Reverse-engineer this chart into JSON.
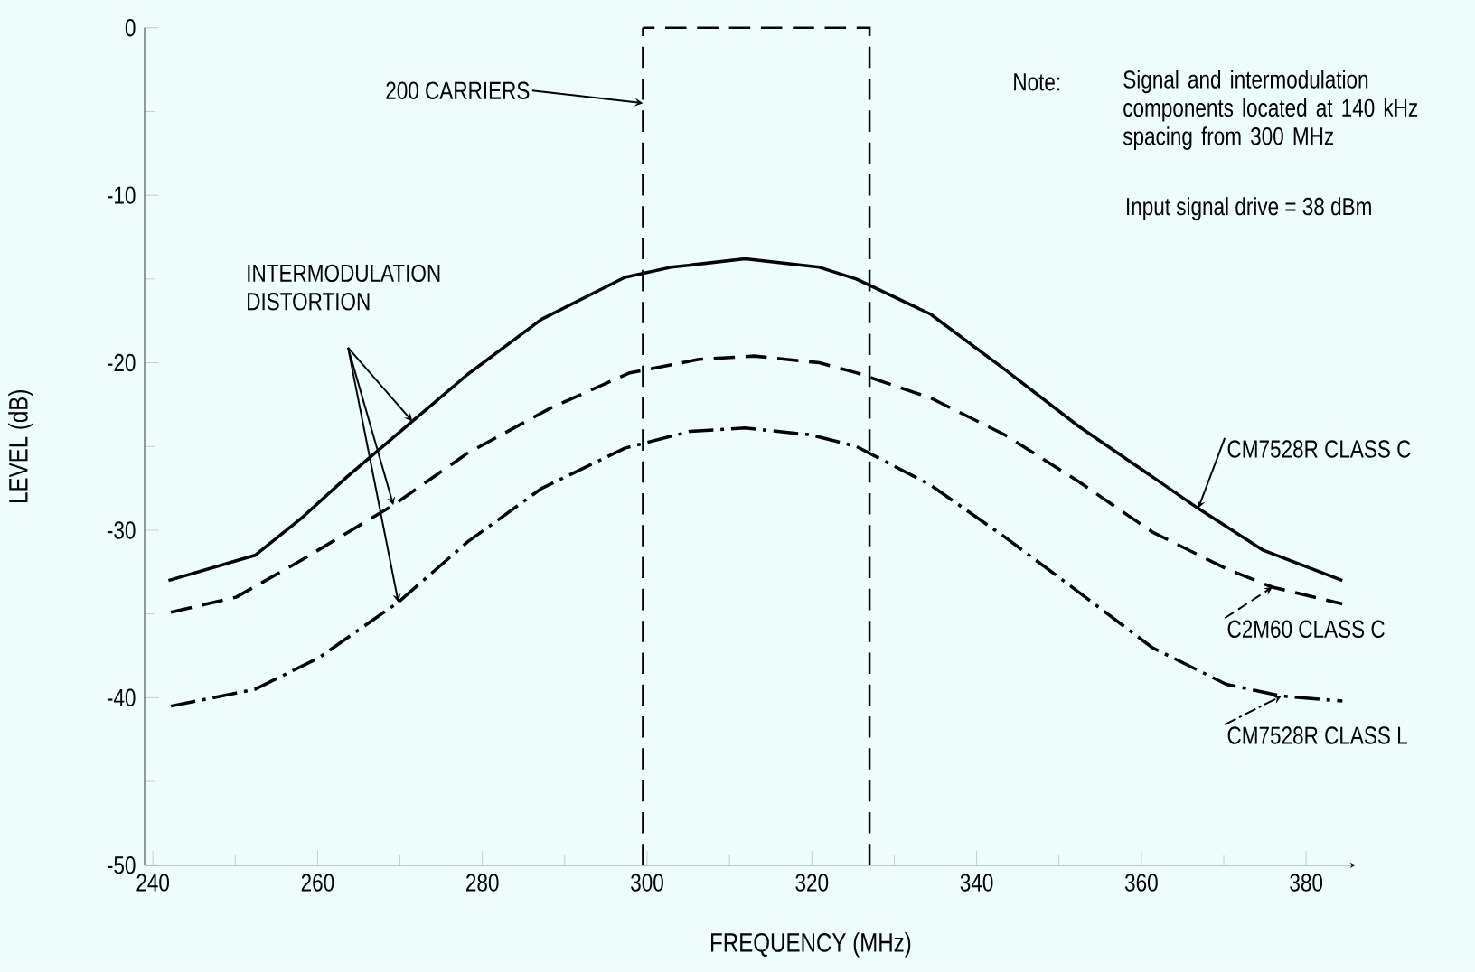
{
  "chart_data": {
    "type": "line",
    "xlabel": "FREQUENCY (MHz)",
    "ylabel": "LEVEL (dB)",
    "xlim": [
      239,
      386
    ],
    "ylim": [
      -50,
      0
    ],
    "xticks": [
      240,
      260,
      280,
      300,
      320,
      340,
      360,
      380
    ],
    "yticks": [
      -50,
      -40,
      -30,
      -20,
      -10,
      0
    ],
    "series": [
      {
        "name": "CM7528R  CLASS C",
        "color": "#000000",
        "line_style": "solid",
        "x": [
          241.9,
          252.4,
          258,
          263.6,
          271.5,
          278.2,
          287.2,
          297.3,
          302.9,
          311.9,
          320.9,
          325.4,
          334.4,
          343.4,
          352.4,
          361.3,
          366.9,
          374.8,
          384.4
        ],
        "values": [
          -33.0,
          -31.5,
          -29.3,
          -26.8,
          -23.5,
          -20.7,
          -17.4,
          -14.9,
          -14.3,
          -13.8,
          -14.3,
          -15.0,
          -17.1,
          -20.4,
          -23.8,
          -26.8,
          -28.7,
          -31.2,
          -33.0
        ]
      },
      {
        "name": "C2M60  CLASS C",
        "color": "#000000",
        "line_style": "dashed",
        "x": [
          242.2,
          250.1,
          258,
          269.2,
          278.2,
          288.3,
          297.9,
          306.3,
          313,
          320.9,
          325.4,
          334.4,
          343.4,
          352.4,
          361.3,
          370.3,
          375.9,
          384.4
        ],
        "values": [
          -34.9,
          -34.0,
          -31.8,
          -28.5,
          -25.4,
          -22.7,
          -20.6,
          -19.8,
          -19.6,
          -20.0,
          -20.6,
          -22.1,
          -24.3,
          -27.1,
          -30.1,
          -32.3,
          -33.4,
          -34.4
        ]
      },
      {
        "name": "CM7528R  CLASS L",
        "color": "#000000",
        "line_style": "dashdot",
        "x": [
          242.2,
          252.4,
          260.2,
          269.8,
          278.2,
          287.2,
          297.3,
          305.2,
          311.9,
          319.8,
          325.4,
          334.4,
          343.4,
          352.4,
          361.3,
          370.3,
          377,
          384.4
        ],
        "values": [
          -40.5,
          -39.5,
          -37.6,
          -34.3,
          -30.7,
          -27.5,
          -25.1,
          -24.1,
          -23.9,
          -24.3,
          -25.0,
          -27.3,
          -30.4,
          -33.7,
          -37.0,
          -39.2,
          -39.9,
          -40.2
        ]
      }
    ],
    "ref_lines": [
      {
        "axis": "x",
        "value": 299.5,
        "label": "200 CARRIERS",
        "line_style": "dashed",
        "color": "#000000"
      },
      {
        "axis": "x",
        "value": 327,
        "line_style": "dashed",
        "color": "#000000"
      }
    ],
    "legend": "right",
    "annotations": [
      "INTERMODULATION DISTORTION",
      "Note:",
      "Signal and intermodulation components located at 140 kHz spacing from 300 MHz",
      "Input signal drive = 38 dBm"
    ]
  }
}
